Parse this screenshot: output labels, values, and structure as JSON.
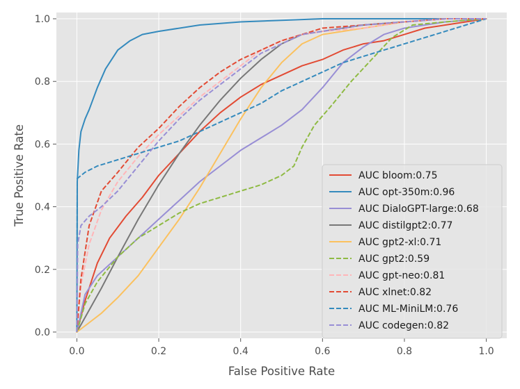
{
  "chart_data": {
    "type": "line",
    "title": "",
    "xlabel": "False Positive Rate",
    "ylabel": "True Positive Rate",
    "xlim": [
      -0.05,
      1.05
    ],
    "ylim": [
      -0.02,
      1.02
    ],
    "xticks": [
      0.0,
      0.2,
      0.4,
      0.6,
      0.8,
      1.0
    ],
    "yticks": [
      0.0,
      0.2,
      0.4,
      0.6,
      0.8,
      1.0
    ],
    "xtick_labels": [
      "0.0",
      "0.2",
      "0.4",
      "0.6",
      "0.8",
      "1.0"
    ],
    "ytick_labels": [
      "0.0",
      "0.2",
      "0.4",
      "0.6",
      "0.8",
      "1.0"
    ],
    "grid": true,
    "legend_position": "lower-right",
    "series": [
      {
        "name": "AUC bloom:0.75",
        "color": "#E24A33",
        "dashed": false,
        "points": [
          [
            0,
            0
          ],
          [
            0.02,
            0.1
          ],
          [
            0.05,
            0.22
          ],
          [
            0.08,
            0.3
          ],
          [
            0.12,
            0.37
          ],
          [
            0.16,
            0.43
          ],
          [
            0.2,
            0.5
          ],
          [
            0.25,
            0.57
          ],
          [
            0.3,
            0.64
          ],
          [
            0.35,
            0.7
          ],
          [
            0.4,
            0.75
          ],
          [
            0.45,
            0.79
          ],
          [
            0.5,
            0.82
          ],
          [
            0.55,
            0.85
          ],
          [
            0.6,
            0.87
          ],
          [
            0.65,
            0.9
          ],
          [
            0.7,
            0.92
          ],
          [
            0.75,
            0.93
          ],
          [
            0.8,
            0.95
          ],
          [
            0.85,
            0.97
          ],
          [
            0.9,
            0.98
          ],
          [
            0.95,
            0.99
          ],
          [
            1,
            1
          ]
        ]
      },
      {
        "name": "AUC opt-350m:0.96",
        "color": "#348ABD",
        "dashed": false,
        "points": [
          [
            0,
            0
          ],
          [
            0.001,
            0.48
          ],
          [
            0.005,
            0.58
          ],
          [
            0.01,
            0.64
          ],
          [
            0.02,
            0.68
          ],
          [
            0.03,
            0.71
          ],
          [
            0.05,
            0.78
          ],
          [
            0.07,
            0.84
          ],
          [
            0.1,
            0.9
          ],
          [
            0.13,
            0.93
          ],
          [
            0.16,
            0.95
          ],
          [
            0.2,
            0.96
          ],
          [
            0.3,
            0.98
          ],
          [
            0.4,
            0.99
          ],
          [
            0.5,
            0.995
          ],
          [
            0.6,
            1
          ],
          [
            0.8,
            1
          ],
          [
            1,
            1
          ]
        ]
      },
      {
        "name": "AUC DialoGPT-large:0.68",
        "color": "#988ED5",
        "dashed": false,
        "points": [
          [
            0,
            0
          ],
          [
            0.02,
            0.12
          ],
          [
            0.05,
            0.18
          ],
          [
            0.1,
            0.24
          ],
          [
            0.15,
            0.3
          ],
          [
            0.2,
            0.36
          ],
          [
            0.25,
            0.42
          ],
          [
            0.3,
            0.48
          ],
          [
            0.35,
            0.53
          ],
          [
            0.4,
            0.58
          ],
          [
            0.45,
            0.62
          ],
          [
            0.5,
            0.66
          ],
          [
            0.55,
            0.71
          ],
          [
            0.6,
            0.78
          ],
          [
            0.65,
            0.86
          ],
          [
            0.7,
            0.91
          ],
          [
            0.75,
            0.95
          ],
          [
            0.8,
            0.97
          ],
          [
            0.85,
            0.98
          ],
          [
            0.9,
            0.99
          ],
          [
            1,
            1
          ]
        ]
      },
      {
        "name": "AUC distilgpt2:0.77",
        "color": "#777777",
        "dashed": false,
        "points": [
          [
            0,
            0
          ],
          [
            0.03,
            0.07
          ],
          [
            0.06,
            0.14
          ],
          [
            0.1,
            0.24
          ],
          [
            0.15,
            0.36
          ],
          [
            0.2,
            0.47
          ],
          [
            0.25,
            0.57
          ],
          [
            0.3,
            0.66
          ],
          [
            0.35,
            0.74
          ],
          [
            0.4,
            0.81
          ],
          [
            0.45,
            0.87
          ],
          [
            0.5,
            0.92
          ],
          [
            0.55,
            0.95
          ],
          [
            0.6,
            0.96
          ],
          [
            0.65,
            0.97
          ],
          [
            0.7,
            0.98
          ],
          [
            0.8,
            0.99
          ],
          [
            0.9,
            1
          ],
          [
            1,
            1
          ]
        ]
      },
      {
        "name": "AUC gpt2-xl:0.71",
        "color": "#FBC15E",
        "dashed": false,
        "points": [
          [
            0,
            0
          ],
          [
            0.03,
            0.03
          ],
          [
            0.06,
            0.06
          ],
          [
            0.1,
            0.11
          ],
          [
            0.15,
            0.18
          ],
          [
            0.2,
            0.27
          ],
          [
            0.25,
            0.36
          ],
          [
            0.3,
            0.46
          ],
          [
            0.35,
            0.57
          ],
          [
            0.4,
            0.68
          ],
          [
            0.45,
            0.78
          ],
          [
            0.5,
            0.86
          ],
          [
            0.55,
            0.92
          ],
          [
            0.6,
            0.95
          ],
          [
            0.65,
            0.96
          ],
          [
            0.7,
            0.97
          ],
          [
            0.8,
            0.99
          ],
          [
            0.9,
            1
          ],
          [
            1,
            1
          ]
        ]
      },
      {
        "name": "AUC gpt2:0.59",
        "color": "#8EBA42",
        "dashed": true,
        "points": [
          [
            0,
            0
          ],
          [
            0.02,
            0.09
          ],
          [
            0.05,
            0.16
          ],
          [
            0.1,
            0.24
          ],
          [
            0.15,
            0.3
          ],
          [
            0.2,
            0.34
          ],
          [
            0.25,
            0.38
          ],
          [
            0.3,
            0.41
          ],
          [
            0.35,
            0.43
          ],
          [
            0.4,
            0.45
          ],
          [
            0.45,
            0.47
          ],
          [
            0.5,
            0.5
          ],
          [
            0.53,
            0.53
          ],
          [
            0.55,
            0.59
          ],
          [
            0.58,
            0.66
          ],
          [
            0.62,
            0.72
          ],
          [
            0.67,
            0.8
          ],
          [
            0.72,
            0.87
          ],
          [
            0.77,
            0.94
          ],
          [
            0.82,
            0.98
          ],
          [
            0.9,
            0.99
          ],
          [
            1,
            1
          ]
        ]
      },
      {
        "name": "AUC gpt-neo:0.81",
        "color": "#FFB5B8",
        "dashed": true,
        "points": [
          [
            0,
            0
          ],
          [
            0.01,
            0.15
          ],
          [
            0.03,
            0.28
          ],
          [
            0.06,
            0.39
          ],
          [
            0.1,
            0.48
          ],
          [
            0.15,
            0.56
          ],
          [
            0.2,
            0.63
          ],
          [
            0.25,
            0.69
          ],
          [
            0.3,
            0.75
          ],
          [
            0.35,
            0.8
          ],
          [
            0.4,
            0.85
          ],
          [
            0.45,
            0.9
          ],
          [
            0.5,
            0.93
          ],
          [
            0.55,
            0.95
          ],
          [
            0.6,
            0.96
          ],
          [
            0.7,
            0.97
          ],
          [
            0.8,
            0.99
          ],
          [
            0.9,
            1
          ],
          [
            1,
            1
          ]
        ]
      },
      {
        "name": "AUC xlnet:0.82",
        "color": "#E24A33",
        "dashed": true,
        "points": [
          [
            0,
            0
          ],
          [
            0.01,
            0.17
          ],
          [
            0.03,
            0.34
          ],
          [
            0.06,
            0.45
          ],
          [
            0.1,
            0.51
          ],
          [
            0.15,
            0.59
          ],
          [
            0.2,
            0.65
          ],
          [
            0.25,
            0.72
          ],
          [
            0.3,
            0.78
          ],
          [
            0.35,
            0.83
          ],
          [
            0.4,
            0.87
          ],
          [
            0.45,
            0.9
          ],
          [
            0.5,
            0.93
          ],
          [
            0.55,
            0.95
          ],
          [
            0.6,
            0.97
          ],
          [
            0.7,
            0.98
          ],
          [
            0.8,
            0.99
          ],
          [
            0.9,
            1
          ],
          [
            1,
            1
          ]
        ]
      },
      {
        "name": "AUC ML-MiniLM:0.76",
        "color": "#348ABD",
        "dashed": true,
        "points": [
          [
            0,
            0
          ],
          [
            0.001,
            0.49
          ],
          [
            0.02,
            0.51
          ],
          [
            0.05,
            0.53
          ],
          [
            0.1,
            0.55
          ],
          [
            0.15,
            0.57
          ],
          [
            0.2,
            0.59
          ],
          [
            0.25,
            0.61
          ],
          [
            0.3,
            0.64
          ],
          [
            0.35,
            0.67
          ],
          [
            0.4,
            0.7
          ],
          [
            0.45,
            0.73
          ],
          [
            0.5,
            0.77
          ],
          [
            0.55,
            0.8
          ],
          [
            0.6,
            0.83
          ],
          [
            0.65,
            0.86
          ],
          [
            0.7,
            0.88
          ],
          [
            0.75,
            0.9
          ],
          [
            0.8,
            0.92
          ],
          [
            0.85,
            0.94
          ],
          [
            0.9,
            0.96
          ],
          [
            0.95,
            0.98
          ],
          [
            1,
            1
          ]
        ]
      },
      {
        "name": "AUC codegen:0.82",
        "color": "#988ED5",
        "dashed": true,
        "points": [
          [
            0,
            0
          ],
          [
            0.002,
            0.28
          ],
          [
            0.01,
            0.34
          ],
          [
            0.03,
            0.37
          ],
          [
            0.06,
            0.4
          ],
          [
            0.1,
            0.45
          ],
          [
            0.15,
            0.53
          ],
          [
            0.2,
            0.61
          ],
          [
            0.25,
            0.68
          ],
          [
            0.3,
            0.74
          ],
          [
            0.35,
            0.79
          ],
          [
            0.4,
            0.84
          ],
          [
            0.45,
            0.89
          ],
          [
            0.5,
            0.92
          ],
          [
            0.55,
            0.95
          ],
          [
            0.6,
            0.96
          ],
          [
            0.7,
            0.98
          ],
          [
            0.8,
            0.99
          ],
          [
            0.9,
            1
          ],
          [
            1,
            1
          ]
        ]
      }
    ]
  }
}
